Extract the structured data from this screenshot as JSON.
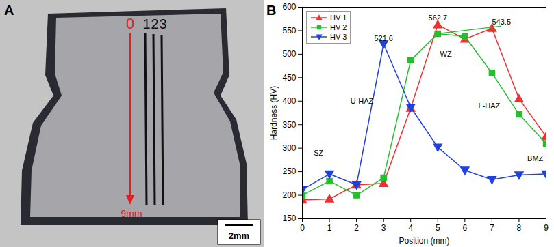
{
  "chart_data": {
    "type": "line",
    "panel": "B",
    "x_label": "Position (mm)",
    "y_label": "Hardness (HV)",
    "x": [
      0,
      1,
      2,
      3,
      4,
      5,
      6,
      7,
      8,
      9
    ],
    "series": [
      {
        "name": "HV 1",
        "color": "#ee3030",
        "marker": "triangle-up",
        "values": [
          190,
          192,
          222,
          225,
          385,
          562.7,
          532,
          555,
          405,
          325
        ]
      },
      {
        "name": "HV 2",
        "color": "#22c02a",
        "marker": "square",
        "values": [
          200,
          230,
          200,
          237,
          487,
          543.5,
          538,
          460,
          372,
          310
        ]
      },
      {
        "name": "HV 3",
        "color": "#2040e0",
        "marker": "triangle-down",
        "values": [
          212,
          245,
          222,
          521.6,
          387,
          302,
          253,
          233,
          243,
          245
        ]
      }
    ],
    "annotations": [
      {
        "text": "521.6",
        "x": 3,
        "y": 533
      },
      {
        "text": "562.7",
        "x": 5,
        "y": 577
      },
      {
        "text": "543.5",
        "x": 7.35,
        "y": 568,
        "line_to": [
          5,
          543.5
        ],
        "color": "#22c02a"
      },
      {
        "text": "SZ",
        "x": 0.6,
        "y": 290
      },
      {
        "text": "U-HAZ",
        "x": 2.2,
        "y": 400
      },
      {
        "text": "WZ",
        "x": 5.3,
        "y": 500
      },
      {
        "text": "L-HAZ",
        "x": 6.9,
        "y": 390
      },
      {
        "text": "BMZ",
        "x": 8.6,
        "y": 278
      }
    ],
    "xlim": [
      0,
      9
    ],
    "xticks": [
      0,
      1,
      2,
      3,
      4,
      5,
      6,
      7,
      8,
      9
    ],
    "ylim": [
      150,
      600
    ],
    "yticks": [
      150,
      200,
      250,
      300,
      350,
      400,
      450,
      500,
      550,
      600
    ],
    "grid": false,
    "legend": "top-left"
  },
  "image_panel": {
    "panel": "A",
    "start_label": "0",
    "line_labels": [
      "1",
      "2",
      "3"
    ],
    "end_label": "9mm",
    "scale_bar": "2mm"
  }
}
